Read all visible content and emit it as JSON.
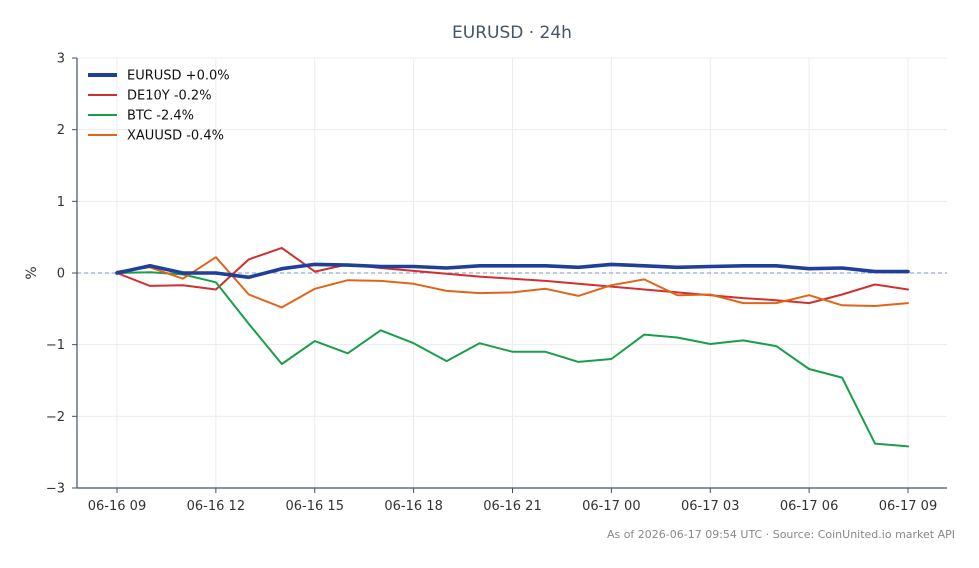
{
  "chart_data": {
    "type": "line",
    "title": "EURUSD · 24h",
    "xlabel": "",
    "ylabel": "%",
    "ylim": [
      -3,
      3
    ],
    "yticks": [
      3,
      2,
      1,
      0,
      -1,
      -2,
      -3
    ],
    "ytick_labels": [
      "3",
      "2",
      "1",
      "0",
      "−1",
      "−2",
      "−3"
    ],
    "x": [
      "06-16 09:00",
      "06-16 10:00",
      "06-16 11:00",
      "06-16 12:00",
      "06-16 13:00",
      "06-16 14:00",
      "06-16 15:00",
      "06-16 16:00",
      "06-16 17:00",
      "06-16 18:00",
      "06-16 19:00",
      "06-16 20:00",
      "06-16 21:00",
      "06-16 22:00",
      "06-16 23:00",
      "06-17 00:00",
      "06-17 01:00",
      "06-17 02:00",
      "06-17 03:00",
      "06-17 04:00",
      "06-17 05:00",
      "06-17 06:00",
      "06-17 07:00",
      "06-17 08:00",
      "06-17 09:00"
    ],
    "xtick_labels": [
      "06-16 09",
      "06-16 12",
      "06-16 15",
      "06-16 18",
      "06-16 21",
      "06-17 00",
      "06-17 03",
      "06-17 06",
      "06-17 09"
    ],
    "xtick_indices": [
      0,
      3,
      6,
      9,
      12,
      15,
      18,
      21,
      24
    ],
    "grid": true,
    "legend_position": "top-left",
    "reference_line": 0,
    "series": [
      {
        "name": "EURUSD +0.0%",
        "color": "#1f3f99",
        "emphasis": true,
        "values": [
          0.0,
          0.1,
          0.0,
          0.0,
          -0.06,
          0.06,
          0.12,
          0.11,
          0.09,
          0.09,
          0.07,
          0.1,
          0.1,
          0.1,
          0.08,
          0.12,
          0.1,
          0.08,
          0.09,
          0.1,
          0.1,
          0.06,
          0.07,
          0.02,
          0.02
        ]
      },
      {
        "name": "DE10Y -0.2%",
        "color": "#d03030",
        "values": [
          0.0,
          -0.18,
          -0.17,
          -0.23,
          0.19,
          0.35,
          0.02,
          0.12,
          0.07,
          0.03,
          -0.01,
          -0.05,
          -0.08,
          -0.11,
          -0.15,
          -0.19,
          -0.23,
          -0.27,
          -0.31,
          -0.35,
          -0.38,
          -0.42,
          -0.3,
          -0.16,
          -0.23
        ]
      },
      {
        "name": "BTC -2.4%",
        "color": "#1a9e4a",
        "values": [
          0.0,
          0.01,
          -0.02,
          -0.13,
          -0.71,
          -1.27,
          -0.95,
          -1.12,
          -0.8,
          -0.98,
          -1.23,
          -0.98,
          -1.1,
          -1.1,
          -1.24,
          -1.2,
          -0.86,
          -0.9,
          -0.99,
          -0.94,
          -1.02,
          -1.34,
          -1.46,
          -2.38,
          -2.42
        ]
      },
      {
        "name": "XAUUSD -0.4%",
        "color": "#e06518",
        "values": [
          0.02,
          0.08,
          -0.08,
          0.22,
          -0.3,
          -0.48,
          -0.22,
          -0.1,
          -0.11,
          -0.15,
          -0.25,
          -0.28,
          -0.27,
          -0.22,
          -0.32,
          -0.17,
          -0.09,
          -0.31,
          -0.3,
          -0.42,
          -0.42,
          -0.31,
          -0.45,
          -0.46,
          -0.42
        ]
      }
    ]
  },
  "footer": {
    "source_note": "As of 2026-06-17 09:54 UTC · Source: CoinUnited.io market API"
  },
  "colors": {
    "text": "#333333",
    "axis": "#40506b",
    "grid": "#ececec",
    "reference_line": "#7f94b8",
    "footnote": "#888888",
    "title": "#445566"
  }
}
